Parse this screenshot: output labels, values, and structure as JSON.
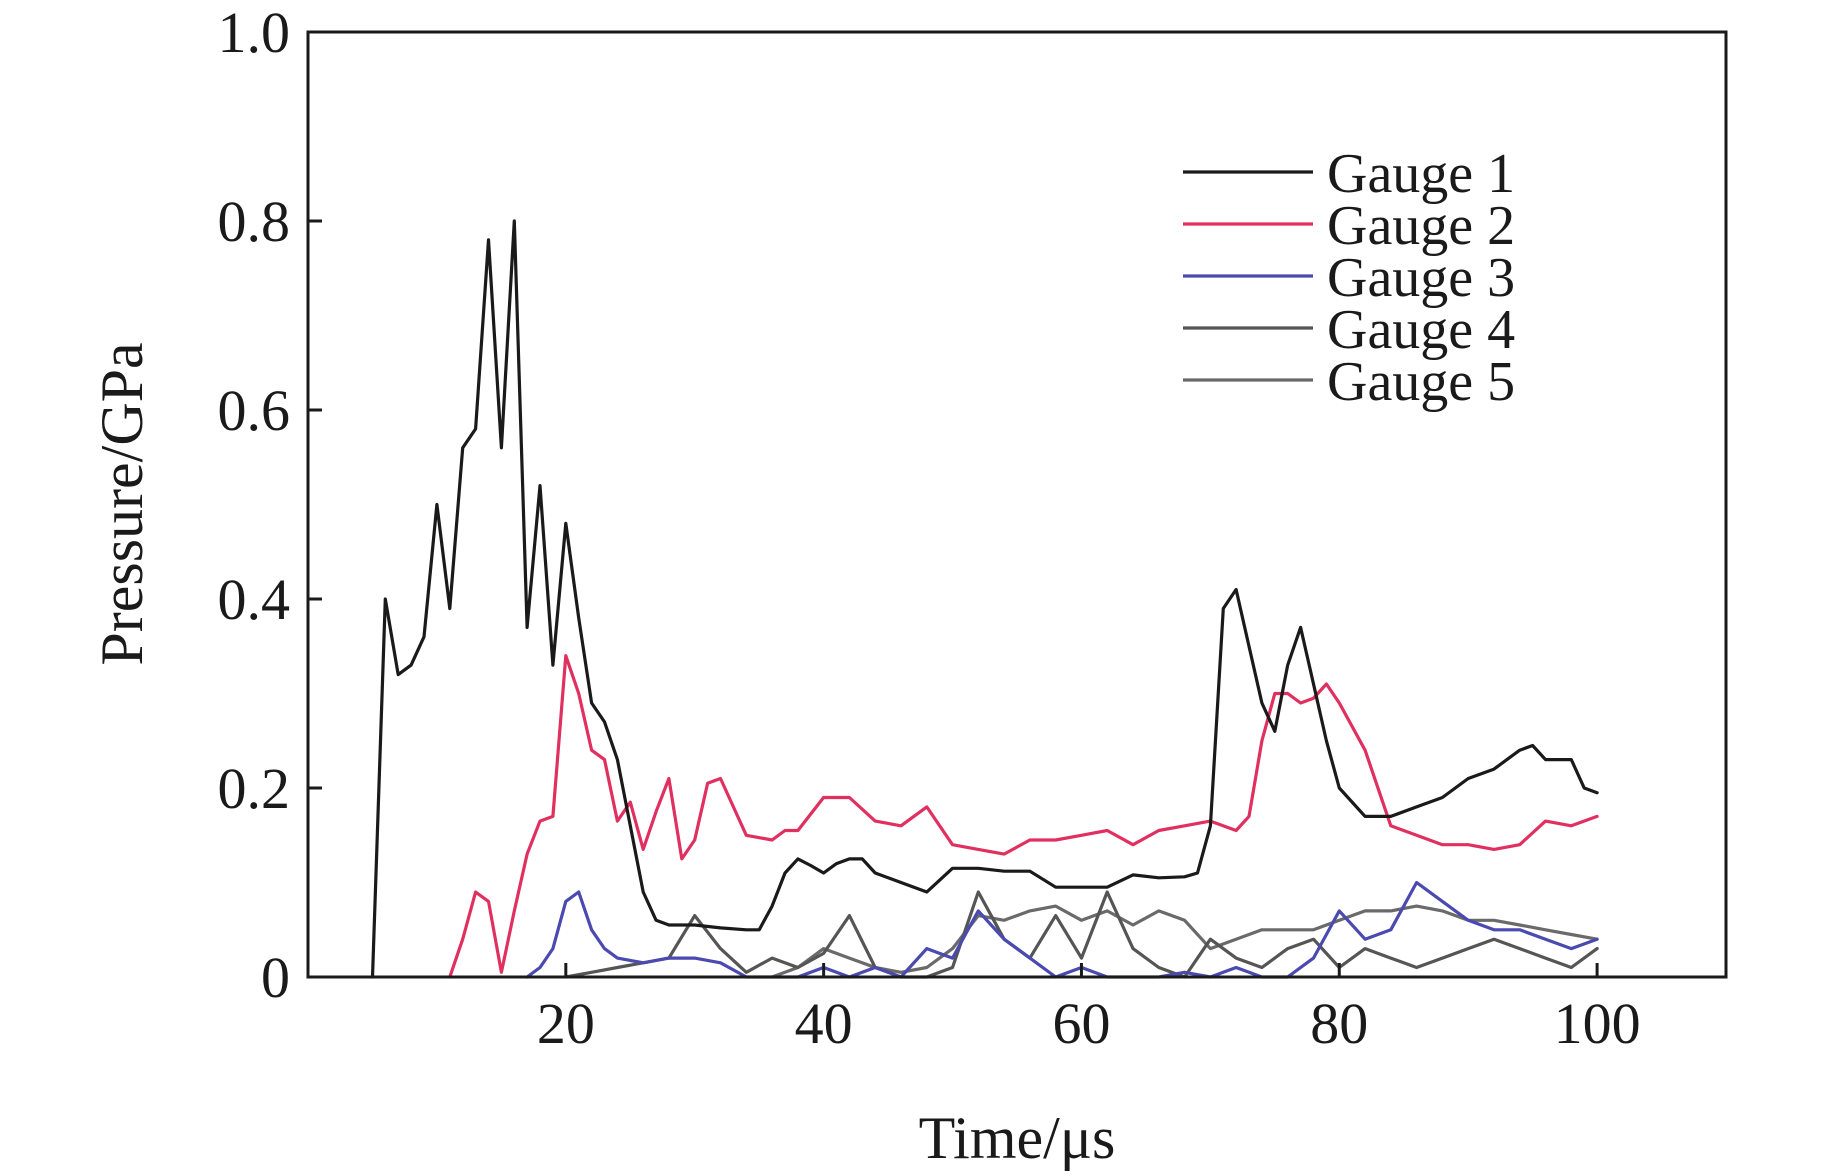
{
  "chart_data": {
    "type": "line",
    "xlabel": "Time/μs",
    "ylabel": "Pressure/GPa",
    "xlim": [
      0,
      110
    ],
    "ylim": [
      0,
      1.0
    ],
    "x_ticks": [
      20,
      40,
      60,
      80,
      100
    ],
    "x_tick_labels": [
      "20",
      "40",
      "60",
      "80",
      "100"
    ],
    "y_ticks": [
      0,
      0.2,
      0.4,
      0.6,
      0.8,
      1.0
    ],
    "y_tick_labels": [
      "0",
      "0.2",
      "0.4",
      "0.6",
      "0.8",
      "1.0"
    ],
    "grid": false,
    "legend_position": "top-right",
    "series": [
      {
        "name": "Gauge 1",
        "color": "#1a1a1a",
        "x": [
          5,
          6,
          7,
          8,
          9,
          10,
          11,
          12,
          13,
          14,
          15,
          16,
          17,
          18,
          19,
          20,
          21,
          22,
          23,
          24,
          25,
          26,
          27,
          28,
          30,
          32,
          34,
          35,
          36,
          37,
          38,
          39,
          40,
          41,
          42,
          43,
          44,
          46,
          48,
          50,
          52,
          54,
          56,
          58,
          60,
          62,
          64,
          66,
          68,
          69,
          70,
          71,
          72,
          73,
          74,
          75,
          76,
          77,
          78,
          79,
          80,
          82,
          84,
          86,
          88,
          90,
          92,
          94,
          95,
          96,
          98,
          99,
          100
        ],
        "y": [
          0,
          0.4,
          0.32,
          0.33,
          0.36,
          0.5,
          0.39,
          0.56,
          0.58,
          0.78,
          0.56,
          0.8,
          0.37,
          0.52,
          0.33,
          0.48,
          0.38,
          0.29,
          0.27,
          0.23,
          0.16,
          0.09,
          0.06,
          0.055,
          0.055,
          0.052,
          0.05,
          0.05,
          0.075,
          0.11,
          0.125,
          0.118,
          0.11,
          0.12,
          0.125,
          0.125,
          0.11,
          0.1,
          0.09,
          0.115,
          0.115,
          0.112,
          0.112,
          0.095,
          0.095,
          0.095,
          0.108,
          0.105,
          0.106,
          0.11,
          0.16,
          0.39,
          0.41,
          0.35,
          0.29,
          0.26,
          0.33,
          0.37,
          0.31,
          0.25,
          0.2,
          0.17,
          0.17,
          0.18,
          0.19,
          0.21,
          0.22,
          0.24,
          0.245,
          0.23,
          0.23,
          0.2,
          0.195
        ]
      },
      {
        "name": "Gauge 2",
        "color": "#e03060",
        "x": [
          11,
          12,
          13,
          14,
          15,
          16,
          17,
          18,
          19,
          20,
          21,
          22,
          23,
          24,
          25,
          26,
          27,
          28,
          29,
          30,
          31,
          32,
          33,
          34,
          36,
          37,
          38,
          40,
          42,
          44,
          46,
          48,
          50,
          52,
          54,
          56,
          58,
          60,
          62,
          64,
          66,
          68,
          70,
          72,
          73,
          74,
          75,
          76,
          77,
          78,
          79,
          80,
          82,
          84,
          86,
          88,
          90,
          92,
          94,
          96,
          98,
          100
        ],
        "y": [
          0,
          0.04,
          0.09,
          0.08,
          0.005,
          0.07,
          0.13,
          0.165,
          0.17,
          0.34,
          0.3,
          0.24,
          0.23,
          0.165,
          0.185,
          0.135,
          0.175,
          0.21,
          0.125,
          0.145,
          0.205,
          0.21,
          0.18,
          0.15,
          0.145,
          0.155,
          0.155,
          0.19,
          0.19,
          0.165,
          0.16,
          0.18,
          0.14,
          0.135,
          0.13,
          0.145,
          0.145,
          0.15,
          0.155,
          0.14,
          0.155,
          0.16,
          0.165,
          0.155,
          0.17,
          0.25,
          0.3,
          0.3,
          0.29,
          0.295,
          0.31,
          0.29,
          0.24,
          0.16,
          0.15,
          0.14,
          0.14,
          0.135,
          0.14,
          0.165,
          0.16,
          0.17
        ]
      },
      {
        "name": "Gauge 3",
        "color": "#4a4ab0",
        "x": [
          17,
          18,
          19,
          20,
          21,
          22,
          23,
          24,
          26,
          28,
          30,
          32,
          34,
          36,
          38,
          40,
          42,
          44,
          46,
          48,
          50,
          52,
          54,
          56,
          58,
          60,
          62,
          64,
          66,
          68,
          70,
          72,
          74,
          76,
          78,
          80,
          82,
          84,
          86,
          88,
          90,
          92,
          94,
          96,
          98,
          100
        ],
        "y": [
          0,
          0.01,
          0.03,
          0.08,
          0.09,
          0.05,
          0.03,
          0.02,
          0.015,
          0.02,
          0.02,
          0.015,
          0,
          0,
          0,
          0.01,
          0,
          0.01,
          0,
          0.03,
          0.02,
          0.07,
          0.04,
          0.02,
          0,
          0.01,
          0,
          0,
          0,
          0.005,
          0,
          0.01,
          0,
          0,
          0.02,
          0.07,
          0.04,
          0.05,
          0.1,
          0.08,
          0.06,
          0.05,
          0.05,
          0.04,
          0.03,
          0.04
        ]
      },
      {
        "name": "Gauge 4",
        "color": "#555555",
        "x": [
          20,
          22,
          24,
          26,
          28,
          30,
          32,
          34,
          36,
          38,
          40,
          42,
          44,
          46,
          48,
          50,
          52,
          54,
          56,
          58,
          60,
          62,
          64,
          66,
          68,
          70,
          72,
          74,
          76,
          78,
          80,
          82,
          84,
          86,
          88,
          90,
          92,
          94,
          96,
          98,
          100
        ],
        "y": [
          0,
          0.005,
          0.01,
          0.015,
          0.02,
          0.065,
          0.03,
          0.005,
          0.02,
          0.01,
          0.025,
          0.065,
          0.01,
          0,
          0,
          0.01,
          0.09,
          0.04,
          0.02,
          0.065,
          0.02,
          0.09,
          0.03,
          0.01,
          0,
          0.04,
          0.02,
          0.01,
          0.03,
          0.04,
          0.01,
          0.03,
          0.02,
          0.01,
          0.02,
          0.03,
          0.04,
          0.03,
          0.02,
          0.01,
          0.03
        ]
      },
      {
        "name": "Gauge 5",
        "color": "#6a6a6a",
        "x": [
          36,
          38,
          40,
          42,
          44,
          46,
          48,
          50,
          52,
          54,
          56,
          58,
          60,
          62,
          64,
          66,
          68,
          70,
          72,
          74,
          76,
          78,
          80,
          82,
          84,
          86,
          88,
          90,
          92,
          94,
          96,
          98,
          100
        ],
        "y": [
          0,
          0.01,
          0.03,
          0.02,
          0.01,
          0.005,
          0.01,
          0.03,
          0.065,
          0.06,
          0.07,
          0.075,
          0.06,
          0.07,
          0.055,
          0.07,
          0.06,
          0.03,
          0.04,
          0.05,
          0.05,
          0.05,
          0.06,
          0.07,
          0.07,
          0.075,
          0.07,
          0.06,
          0.06,
          0.055,
          0.05,
          0.045,
          0.04
        ]
      }
    ]
  }
}
